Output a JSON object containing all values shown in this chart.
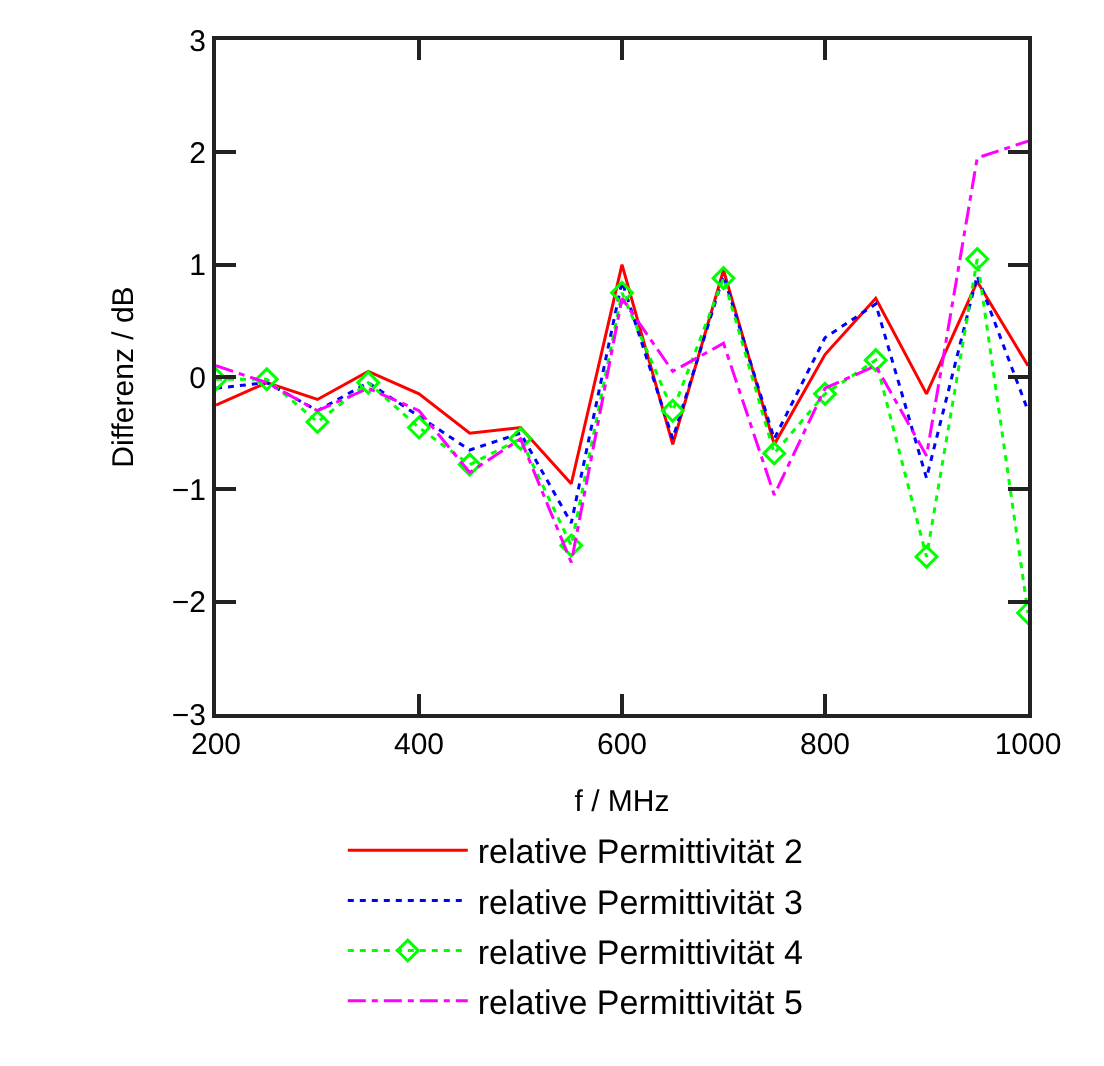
{
  "chart_data": {
    "type": "line",
    "xlabel": "f / MHz",
    "ylabel": "Differenz / dB",
    "x": [
      200,
      250,
      300,
      350,
      400,
      450,
      500,
      550,
      600,
      650,
      700,
      750,
      800,
      850,
      900,
      950,
      1000
    ],
    "series": [
      {
        "name": "relative Permittivität 2",
        "color": "#ff0000",
        "line_style": "solid",
        "marker": "none",
        "values": [
          -0.25,
          -0.05,
          -0.2,
          0.05,
          -0.15,
          -0.5,
          -0.45,
          -0.95,
          1.0,
          -0.6,
          0.95,
          -0.6,
          0.2,
          0.7,
          -0.15,
          0.85,
          0.1
        ]
      },
      {
        "name": "relative Permittivität 3",
        "color": "#0000ff",
        "line_style": "dotted",
        "marker": "none",
        "values": [
          -0.1,
          -0.05,
          -0.3,
          -0.05,
          -0.35,
          -0.65,
          -0.5,
          -1.3,
          0.85,
          -0.55,
          0.9,
          -0.55,
          0.35,
          0.65,
          -0.9,
          0.9,
          -0.3
        ]
      },
      {
        "name": "relative Permittivität 4",
        "color": "#00ff00",
        "line_style": "dotted",
        "marker": "diamond",
        "values": [
          -0.02,
          -0.02,
          -0.4,
          -0.05,
          -0.45,
          -0.78,
          -0.55,
          -1.5,
          0.75,
          -0.3,
          0.88,
          -0.68,
          -0.15,
          0.15,
          -1.6,
          1.05,
          -2.1
        ]
      },
      {
        "name": "relative Permittivität 5",
        "color": "#ff00ff",
        "line_style": "dashdot",
        "marker": "none",
        "values": [
          0.1,
          -0.05,
          -0.3,
          -0.1,
          -0.3,
          -0.85,
          -0.55,
          -1.65,
          0.7,
          0.05,
          0.3,
          -1.05,
          -0.1,
          0.1,
          -0.7,
          1.95,
          2.1
        ]
      }
    ],
    "xlim": [
      200,
      1000
    ],
    "xticks": [
      200,
      400,
      600,
      800,
      1000
    ],
    "ylim": [
      -3,
      3
    ],
    "yticks": [
      -3,
      -2,
      -1,
      0,
      1,
      2,
      3
    ],
    "legend": "bottom"
  }
}
